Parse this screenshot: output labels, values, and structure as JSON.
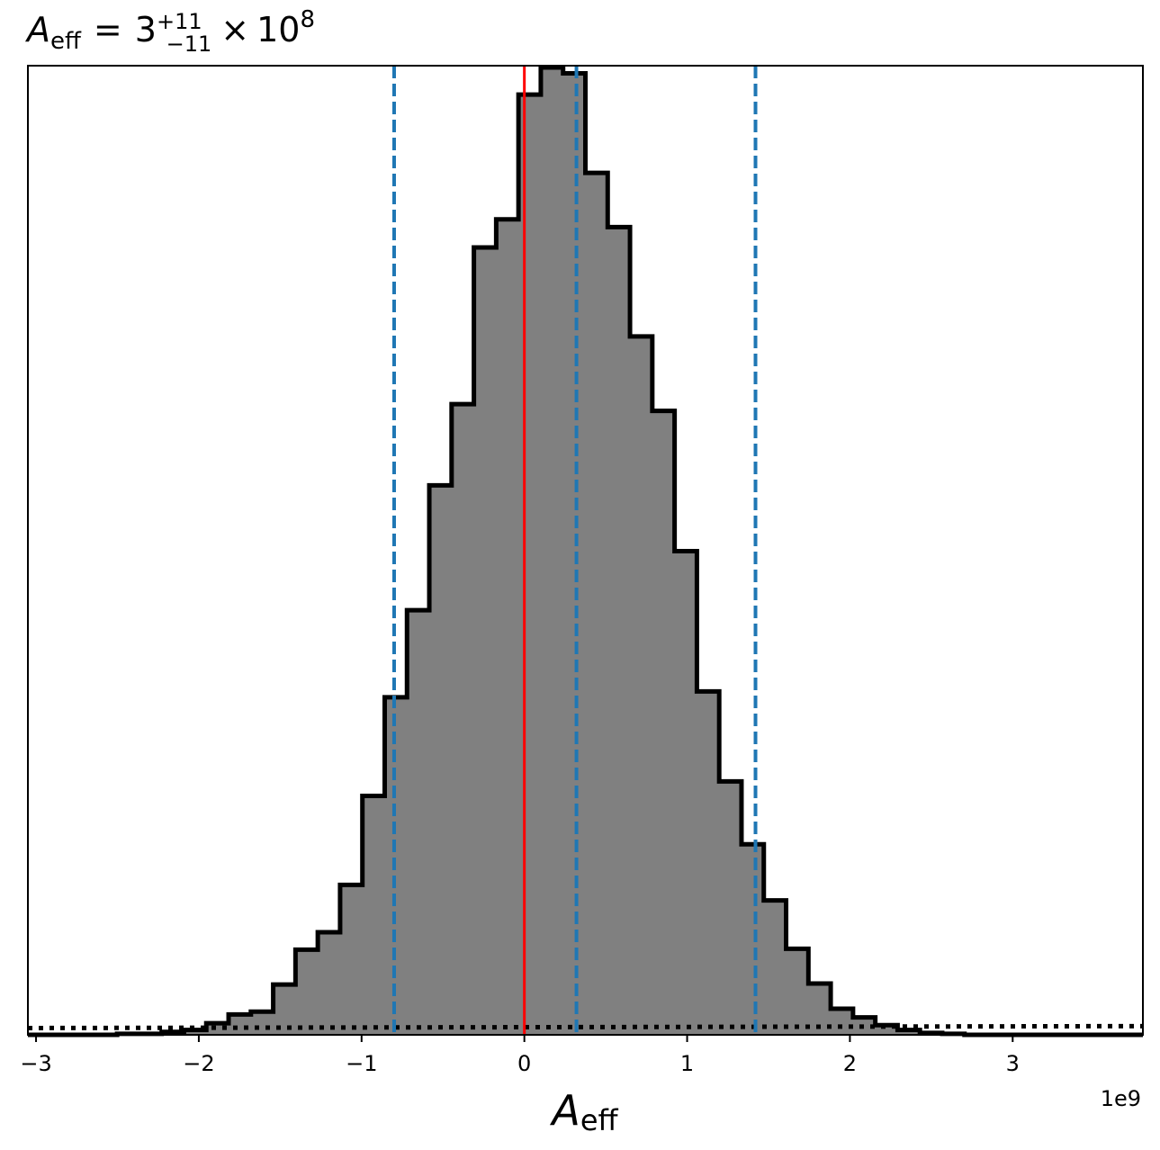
{
  "chart_data": {
    "type": "histogram",
    "title": {
      "symbol": "A",
      "symbol_sub": "eff",
      "eq": "=",
      "value": "3",
      "sup": "+11",
      "sub": "−11",
      "times": "×",
      "base": "10",
      "exp": "8"
    },
    "xlabel": {
      "symbol": "A",
      "sub": "eff"
    },
    "x_offset_text": "1e9",
    "xlim": [
      -3.05,
      3.8
    ],
    "xticks": [
      {
        "v": -3,
        "label": "−3"
      },
      {
        "v": -2,
        "label": "−2"
      },
      {
        "v": -1,
        "label": "−1"
      },
      {
        "v": 0,
        "label": "0"
      },
      {
        "v": 1,
        "label": "1"
      },
      {
        "v": 2,
        "label": "2"
      },
      {
        "v": 3,
        "label": "3"
      }
    ],
    "bin_edges": [
      -3.05,
      -2.913,
      -2.776,
      -2.639,
      -2.502,
      -2.365,
      -2.228,
      -2.091,
      -1.954,
      -1.817,
      -1.68,
      -1.543,
      -1.406,
      -1.269,
      -1.132,
      -0.995,
      -0.858,
      -0.721,
      -0.584,
      -0.447,
      -0.31,
      -0.173,
      -0.036,
      0.101,
      0.238,
      0.375,
      0.512,
      0.649,
      0.786,
      0.923,
      1.06,
      1.197,
      1.334,
      1.471,
      1.608,
      1.745,
      1.882,
      2.019,
      2.156,
      2.293,
      2.43,
      2.567,
      2.704,
      2.841,
      2.978,
      3.115,
      3.252,
      3.389,
      3.526,
      3.663,
      3.8
    ],
    "counts": [
      0.0,
      0.0,
      0.0,
      0.0,
      0.001,
      0.001,
      0.003,
      0.005,
      0.012,
      0.021,
      0.024,
      0.052,
      0.088,
      0.106,
      0.155,
      0.247,
      0.349,
      0.439,
      0.568,
      0.652,
      0.814,
      0.843,
      0.972,
      1.0,
      0.994,
      0.891,
      0.835,
      0.722,
      0.645,
      0.5,
      0.355,
      0.262,
      0.197,
      0.139,
      0.089,
      0.053,
      0.027,
      0.018,
      0.01,
      0.005,
      0.002,
      0.001,
      0.0,
      0.0,
      0.0,
      0.0,
      0.0,
      0.0,
      0.0,
      0.0
    ],
    "ylim": [
      0,
      1.0
    ],
    "hist_fill": "#808080",
    "hist_edge": "#000000",
    "vlines": [
      {
        "x": 0.0,
        "color": "#ff0000",
        "style": "solid",
        "role": "true-value"
      },
      {
        "x": -0.8,
        "color": "#1f77b4",
        "style": "dashed",
        "role": "lower-quantile"
      },
      {
        "x": 0.32,
        "color": "#1f77b4",
        "style": "dashed",
        "role": "median"
      },
      {
        "x": 1.42,
        "color": "#1f77b4",
        "style": "dashed",
        "role": "upper-quantile"
      }
    ],
    "prior_line": {
      "y_start": 0.007,
      "y_end": 0.009,
      "color": "#000000",
      "style": "dotted"
    },
    "grid": false,
    "legend": "none"
  }
}
